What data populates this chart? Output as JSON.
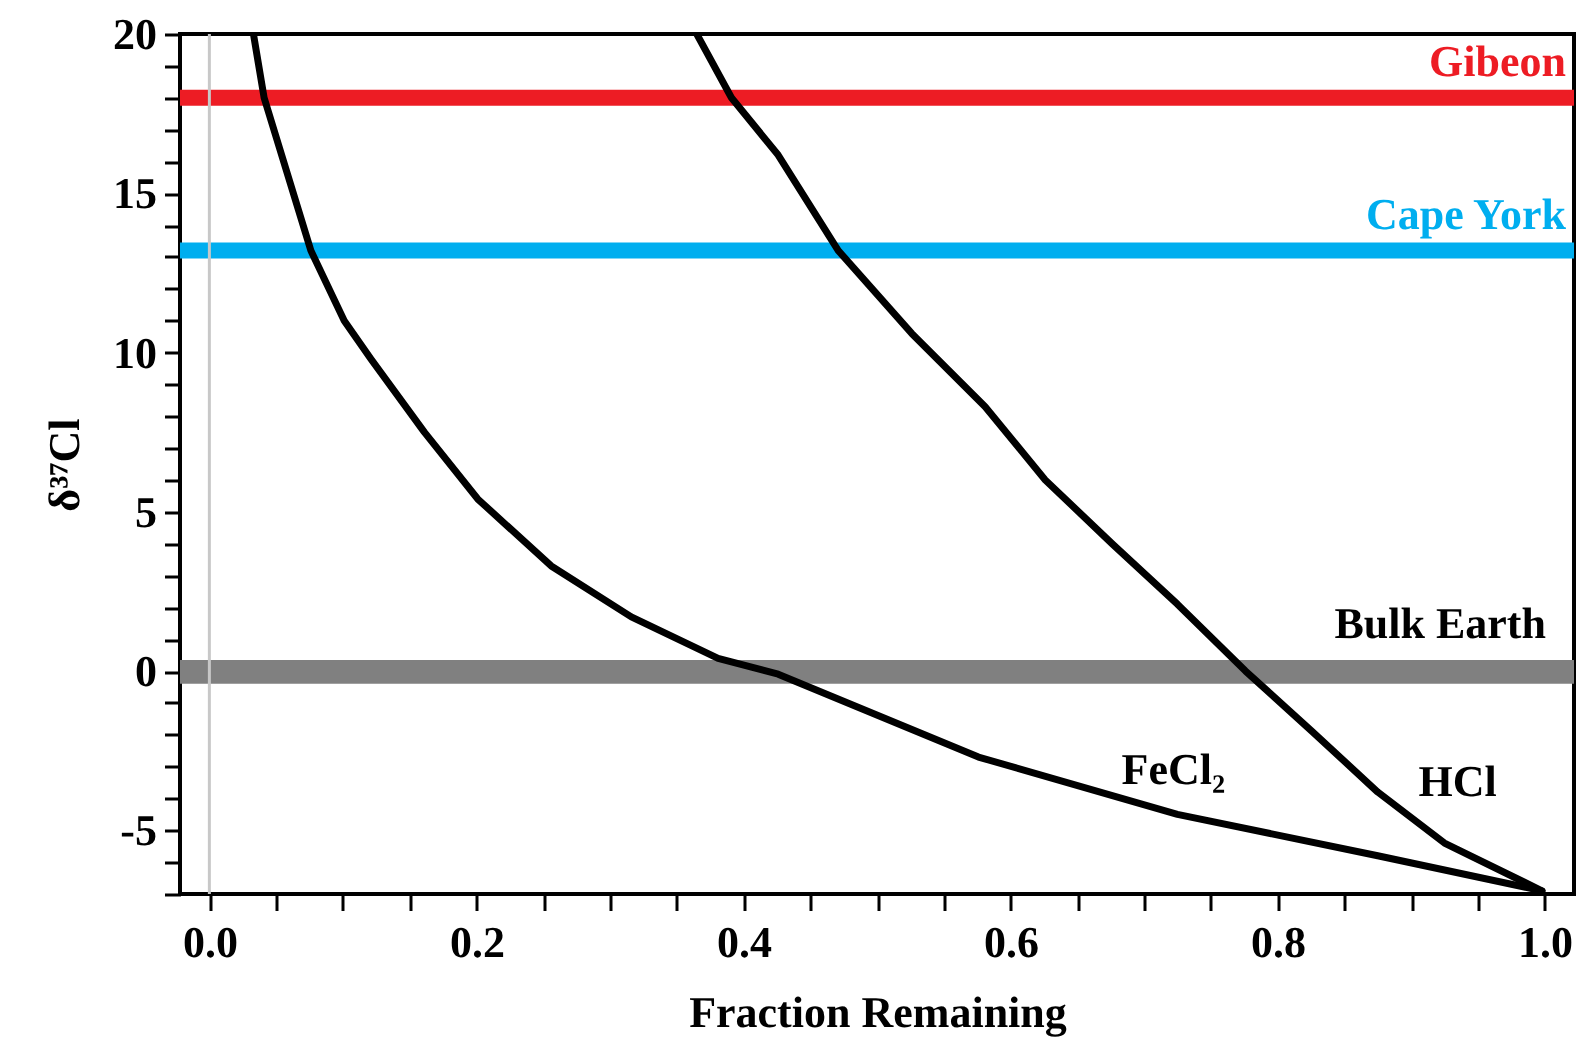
{
  "chart_data": {
    "type": "line",
    "xlabel": "Fraction Remaining",
    "ylabel": "δ³⁷Cl",
    "xlim": [
      -0.022,
      1.022
    ],
    "ylim": [
      -7,
      20
    ],
    "xticks": [
      {
        "value": 0,
        "label": "0.0"
      },
      {
        "value": 0.05,
        "label": null
      },
      {
        "value": 0.1,
        "label": null
      },
      {
        "value": 0.15,
        "label": null
      },
      0.2,
      {
        "value": 0.25,
        "label": null
      },
      {
        "value": 0.3,
        "label": null
      },
      {
        "value": 0.35,
        "label": null
      },
      0.4,
      {
        "value": 0.45,
        "label": null
      },
      {
        "value": 0.5,
        "label": null
      },
      {
        "value": 0.55,
        "label": null
      },
      0.6,
      {
        "value": 0.65,
        "label": null
      },
      {
        "value": 0.7,
        "label": null
      },
      {
        "value": 0.75,
        "label": null
      },
      0.8,
      {
        "value": 0.85,
        "label": null
      },
      {
        "value": 0.9,
        "label": null
      },
      {
        "value": 0.95,
        "label": null
      },
      {
        "value": 1,
        "label": "1.0"
      }
    ],
    "yticks": [
      {
        "value": -7,
        "label": null
      },
      {
        "value": -6,
        "label": null
      },
      -5,
      {
        "value": -4,
        "label": null
      },
      {
        "value": -3,
        "label": null
      },
      {
        "value": -2,
        "label": null
      },
      {
        "value": -1,
        "label": null
      },
      0,
      {
        "value": 1,
        "label": null
      },
      {
        "value": 2,
        "label": null
      },
      {
        "value": 3,
        "label": null
      },
      {
        "value": 4,
        "label": null
      },
      5,
      {
        "value": 6,
        "label": null
      },
      {
        "value": 7,
        "label": null
      },
      {
        "value": 8,
        "label": null
      },
      {
        "value": 9,
        "label": null
      },
      10,
      {
        "value": 11,
        "label": null
      },
      {
        "value": 12,
        "label": null
      },
      {
        "value": 13,
        "label": null
      },
      {
        "value": 14,
        "label": null
      },
      15,
      {
        "value": 16,
        "label": null
      },
      {
        "value": 17,
        "label": null
      },
      {
        "value": 18,
        "label": null
      },
      {
        "value": 19,
        "label": null
      },
      20
    ],
    "grid": false,
    "marker": "none",
    "line_style": "solid",
    "series": [
      {
        "name": "FeCl₂",
        "color": "#000000",
        "x": [
          0.033,
          0.041,
          0.076,
          0.101,
          0.121,
          0.161,
          0.201,
          0.256,
          0.316,
          0.381,
          0.426,
          0.576,
          0.725,
          0.875,
          0.998
        ],
        "values": [
          20,
          18.0,
          13.2,
          11.0,
          9.8,
          7.5,
          5.4,
          3.3,
          1.7,
          0.4,
          -0.1,
          -2.7,
          -4.5,
          -5.8,
          -6.9
        ]
      },
      {
        "name": "HCl",
        "color": "#000000",
        "x": [
          0.365,
          0.391,
          0.426,
          0.471,
          0.526,
          0.581,
          0.626,
          0.676,
          0.725,
          0.776,
          0.826,
          0.875,
          0.925,
          0.998
        ],
        "values": [
          20,
          18.0,
          16.2,
          13.2,
          10.6,
          8.3,
          6.0,
          4.0,
          2.1,
          0.0,
          -1.9,
          -3.8,
          -5.4,
          -6.9
        ]
      }
    ],
    "ref_lines": [
      {
        "axis": "y",
        "value": 18.0,
        "label": "Gibeon",
        "color": "#ed1c24"
      },
      {
        "axis": "y",
        "value": 13.2,
        "label": "Cape York",
        "color": "#00aeef"
      },
      {
        "axis": "x",
        "value": 0,
        "color": "#c8c8c8"
      }
    ],
    "bands": [
      {
        "axis": "y",
        "from": -0.4,
        "to": 0.35,
        "label": "Bulk Earth",
        "color": "#808080"
      }
    ]
  }
}
